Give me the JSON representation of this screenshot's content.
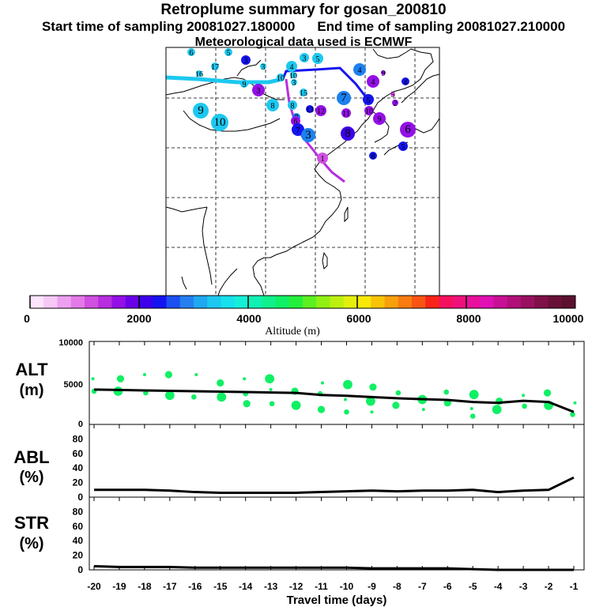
{
  "header": {
    "title": "Retroplume summary for gosan_200810",
    "start_label": "Start time of sampling 20081027.180000",
    "end_label": "End time of sampling 20081027.210000",
    "met_label": "Meteorological data used is ECMWF"
  },
  "colorbar": {
    "label": "Altitude (m)",
    "ticks": [
      "0",
      "2000",
      "4000",
      "6000",
      "8000",
      "10000"
    ],
    "colors": [
      "#fce4fc",
      "#f6c8f6",
      "#eda0f0",
      "#e37ae8",
      "#d050e0",
      "#b82ee0",
      "#9410e6",
      "#6a00e8",
      "#3c00ea",
      "#1414f0",
      "#1c50f0",
      "#2480f0",
      "#20a8f0",
      "#1cc8f0",
      "#18e0ec",
      "#14f0d8",
      "#10f0b4",
      "#10f08c",
      "#10f064",
      "#24f03c",
      "#5cf020",
      "#90f014",
      "#bcf010",
      "#e4f00c",
      "#f8e808",
      "#f8c408",
      "#f8a00c",
      "#f87c10",
      "#f85414",
      "#f82418",
      "#f4105c",
      "#f0107c",
      "#e8109c",
      "#e010b4",
      "#c81094",
      "#b01078",
      "#981060",
      "#801048",
      "#681038",
      "#5c1030"
    ]
  },
  "map": {
    "lines": [
      {
        "color": "#1cc8f0",
        "label_run": "10 to 3"
      },
      {
        "color": "#1414f0",
        "label_run": "3 to 1"
      },
      {
        "color": "#b82ee0",
        "label_run": "final"
      }
    ],
    "markers": [
      {
        "label": "6",
        "color": "#1cc8f0"
      },
      {
        "label": "5",
        "color": "#1cc8f0"
      },
      {
        "label": "16",
        "color": "#1cc8f0"
      },
      {
        "label": "17",
        "color": "#1cc8f0"
      },
      {
        "label": "3",
        "color": "#1414f0"
      },
      {
        "label": "3",
        "color": "#1cc8f0"
      },
      {
        "label": "4",
        "color": "#1cc8f0"
      },
      {
        "label": "3",
        "color": "#1cc8f0"
      },
      {
        "label": "5",
        "color": "#1cc8f0"
      },
      {
        "label": "4",
        "color": "#1c80f0"
      },
      {
        "label": "10",
        "color": "#1cc8f0"
      },
      {
        "label": "9",
        "color": "#1cc8f0"
      },
      {
        "label": "3",
        "color": "#9410e6"
      },
      {
        "label": "3",
        "color": "#1cc8f0"
      },
      {
        "label": "10",
        "color": "#1cc8f0"
      },
      {
        "label": "8",
        "color": "#1cc8f0"
      },
      {
        "label": "15",
        "color": "#1cc8f0"
      },
      {
        "label": "4",
        "color": "#9410e6"
      },
      {
        "label": "9",
        "color": "#9410e6"
      },
      {
        "label": "4",
        "color": "#1414f0"
      },
      {
        "label": "7",
        "color": "#1c80f0"
      },
      {
        "label": "5",
        "color": "#1414f0"
      },
      {
        "label": "5",
        "color": "#d050e0"
      },
      {
        "label": "9",
        "color": "#1cc8f0"
      },
      {
        "label": "10",
        "color": "#1cc8f0"
      },
      {
        "label": "8",
        "color": "#1cc8f0"
      },
      {
        "label": "7",
        "color": "#1c80f0"
      },
      {
        "label": "13",
        "color": "#1414f0"
      },
      {
        "label": "12",
        "color": "#9410e6"
      },
      {
        "label": "11",
        "color": "#9410e6"
      },
      {
        "label": "10",
        "color": "#9410e6"
      },
      {
        "label": "2",
        "color": "#9410e6"
      },
      {
        "label": "6",
        "color": "#9410e6"
      },
      {
        "label": "7",
        "color": "#1414f0"
      },
      {
        "label": "8",
        "color": "#3c00ea"
      },
      {
        "label": "9",
        "color": "#9410e6"
      },
      {
        "label": "6",
        "color": "#9410e6"
      },
      {
        "label": "3",
        "color": "#1c80f0"
      },
      {
        "label": "5",
        "color": "#1414f0"
      },
      {
        "label": "8",
        "color": "#1414f0"
      },
      {
        "label": "1",
        "color": "#d050e0"
      }
    ]
  },
  "chart_data": [
    {
      "type": "line",
      "panel": "ALT",
      "ylabel": "ALT\n(m)",
      "x": [
        -20,
        -19,
        -18,
        -17,
        -16,
        -15,
        -14,
        -13,
        -12,
        -11,
        -10,
        -9,
        -8,
        -7,
        -6,
        -5,
        -4,
        -3,
        -2,
        -1
      ],
      "series": [
        {
          "name": "mean altitude",
          "values": [
            4200,
            4150,
            4100,
            4050,
            4000,
            3950,
            3900,
            3850,
            3800,
            3550,
            3450,
            3300,
            3150,
            3050,
            2950,
            2700,
            2600,
            2850,
            2700,
            1500
          ]
        }
      ],
      "scatter": {
        "points": [
          [
            -20,
            5500
          ],
          [
            -20,
            4000
          ],
          [
            -19,
            5500
          ],
          [
            -19,
            4000
          ],
          [
            -18,
            6000
          ],
          [
            -18,
            3800
          ],
          [
            -17,
            6000
          ],
          [
            -17,
            3500
          ],
          [
            -16,
            6000
          ],
          [
            -16,
            3300
          ],
          [
            -15,
            5000
          ],
          [
            -15,
            3300
          ],
          [
            -14,
            5500
          ],
          [
            -14,
            3700
          ],
          [
            -14,
            2500
          ],
          [
            -13,
            5500
          ],
          [
            -13,
            4200
          ],
          [
            -13,
            2500
          ],
          [
            -12,
            4000
          ],
          [
            -12,
            2300
          ],
          [
            -11,
            5000
          ],
          [
            -11,
            3700
          ],
          [
            -11,
            1800
          ],
          [
            -10,
            4800
          ],
          [
            -10,
            3000
          ],
          [
            -10,
            1500
          ],
          [
            -9,
            4500
          ],
          [
            -9,
            2800
          ],
          [
            -9,
            1500
          ],
          [
            -8,
            3800
          ],
          [
            -8,
            2300
          ],
          [
            -7,
            3000
          ],
          [
            -7,
            1800
          ],
          [
            -6,
            3900
          ],
          [
            -6,
            2600
          ],
          [
            -5,
            3600
          ],
          [
            -5,
            1900
          ],
          [
            -5,
            1000
          ],
          [
            -4,
            2800
          ],
          [
            -4,
            1800
          ],
          [
            -3,
            3500
          ],
          [
            -3,
            2200
          ],
          [
            -2,
            3800
          ],
          [
            -2,
            2300
          ],
          [
            -1,
            2600
          ],
          [
            -1,
            1200
          ]
        ],
        "color": "#10f064"
      },
      "ylim": [
        0,
        10000
      ],
      "yticks": [
        "10000",
        "5000",
        "0"
      ]
    },
    {
      "type": "line",
      "panel": "ABL",
      "ylabel": "ABL\n(%)",
      "x": [
        -20,
        -19,
        -18,
        -17,
        -16,
        -15,
        -14,
        -13,
        -12,
        -11,
        -10,
        -9,
        -8,
        -7,
        -6,
        -5,
        -4,
        -3,
        -2,
        -1
      ],
      "series": [
        {
          "name": "ABL fraction",
          "values": [
            10,
            10,
            10,
            9,
            7,
            6,
            6,
            6,
            6,
            7,
            8,
            9,
            8,
            9,
            9,
            10,
            7,
            9,
            10,
            27
          ]
        }
      ],
      "ylim": [
        0,
        100
      ],
      "yticks": [
        "80",
        "60",
        "40",
        "20",
        "0"
      ]
    },
    {
      "type": "line",
      "panel": "STR",
      "ylabel": "STR\n(%)",
      "x": [
        -20,
        -19,
        -18,
        -17,
        -16,
        -15,
        -14,
        -13,
        -12,
        -11,
        -10,
        -9,
        -8,
        -7,
        -6,
        -5,
        -4,
        -3,
        -2,
        -1
      ],
      "series": [
        {
          "name": "STR fraction",
          "values": [
            5,
            4,
            4,
            4,
            3,
            3,
            3,
            3,
            3,
            3,
            3,
            2,
            2,
            2,
            2,
            1,
            0,
            0,
            0,
            0
          ]
        }
      ],
      "ylim": [
        0,
        100
      ],
      "yticks": [
        "80",
        "60",
        "40",
        "20",
        "0"
      ]
    }
  ],
  "xaxis": {
    "label": "Travel time (days)",
    "ticks": [
      "-20",
      "-19",
      "-18",
      "-17",
      "-16",
      "-15",
      "-14",
      "-13",
      "-12",
      "-11",
      "-10",
      "-9",
      "-8",
      "-7",
      "-6",
      "-5",
      "-4",
      "-3",
      "-2",
      "-1"
    ]
  }
}
